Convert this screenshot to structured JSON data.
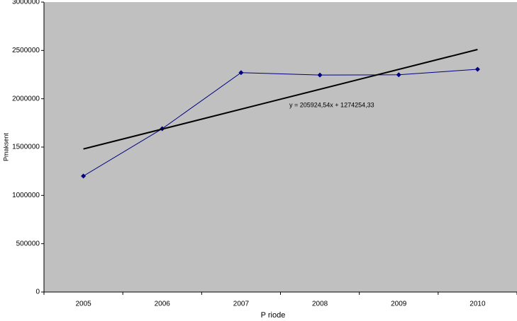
{
  "chart_data": {
    "type": "line",
    "x_label": "P riode",
    "y_label": "Pmaksent",
    "categories": [
      "2005",
      "2006",
      "2007",
      "2008",
      "2009",
      "2010"
    ],
    "series": [
      {
        "color": "#000080",
        "values": [
          1200000,
          1690000,
          2270000,
          2245000,
          2248000,
          2305000
        ]
      }
    ],
    "trendline": {
      "slope": 205924.54,
      "intercept": 1274254.33,
      "label": "y = 205924,54x + 1274254,33",
      "color": "#000000"
    },
    "ylim": [
      0,
      3000000
    ],
    "yticks": [
      0,
      500000,
      1000000,
      1500000,
      2000000,
      2500000,
      3000000
    ],
    "background": "#c0c0c0"
  }
}
